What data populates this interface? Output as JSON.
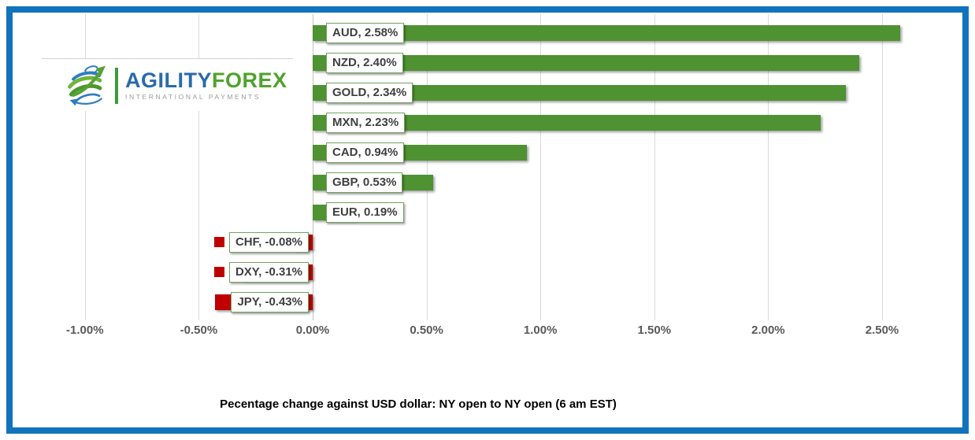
{
  "frame": {
    "border_color": "#1173bc"
  },
  "logo": {
    "brand_primary": "AGILITY",
    "brand_secondary": "FOREX",
    "tagline": "INTERNATIONAL PAYMENTS",
    "colors": {
      "primary_blue": "#2a6ba9",
      "secondary_green": "#4ea32b",
      "tagline_gray": "#9b9b9b"
    }
  },
  "chart_data": {
    "type": "bar",
    "orientation": "horizontal",
    "title": "Pecentage change against USD dollar: NY open to NY open  (6 am EST)",
    "categories": [
      "AUD",
      "NZD",
      "GOLD",
      "MXN",
      "CAD",
      "GBP",
      "EUR",
      "CHF",
      "DXY",
      "JPY"
    ],
    "values": [
      2.58,
      2.4,
      2.34,
      2.23,
      0.94,
      0.53,
      0.19,
      -0.08,
      -0.31,
      -0.43
    ],
    "labels": [
      "AUD, 2.58%",
      "NZD, 2.40%",
      "GOLD, 2.34%",
      "MXN, 2.23%",
      "CAD, 0.94%",
      "GBP, 0.53%",
      "EUR, 0.19%",
      "CHF, -0.08%",
      "DXY, -0.31%",
      "JPY, -0.43%"
    ],
    "x_ticks": [
      "-1.00%",
      "-0.50%",
      "0.00%",
      "0.50%",
      "1.00%",
      "1.50%",
      "2.00%",
      "2.50%"
    ],
    "x_tick_values": [
      -1.0,
      -0.5,
      0,
      0.5,
      1.0,
      1.5,
      2.0,
      2.5
    ],
    "xlim": [
      -1.0,
      2.58
    ],
    "grid": true,
    "legend_position": "none",
    "positive_color": "#4e9232",
    "negative_color": "#c00000",
    "data_label_style": "white box with green border and legend key"
  }
}
